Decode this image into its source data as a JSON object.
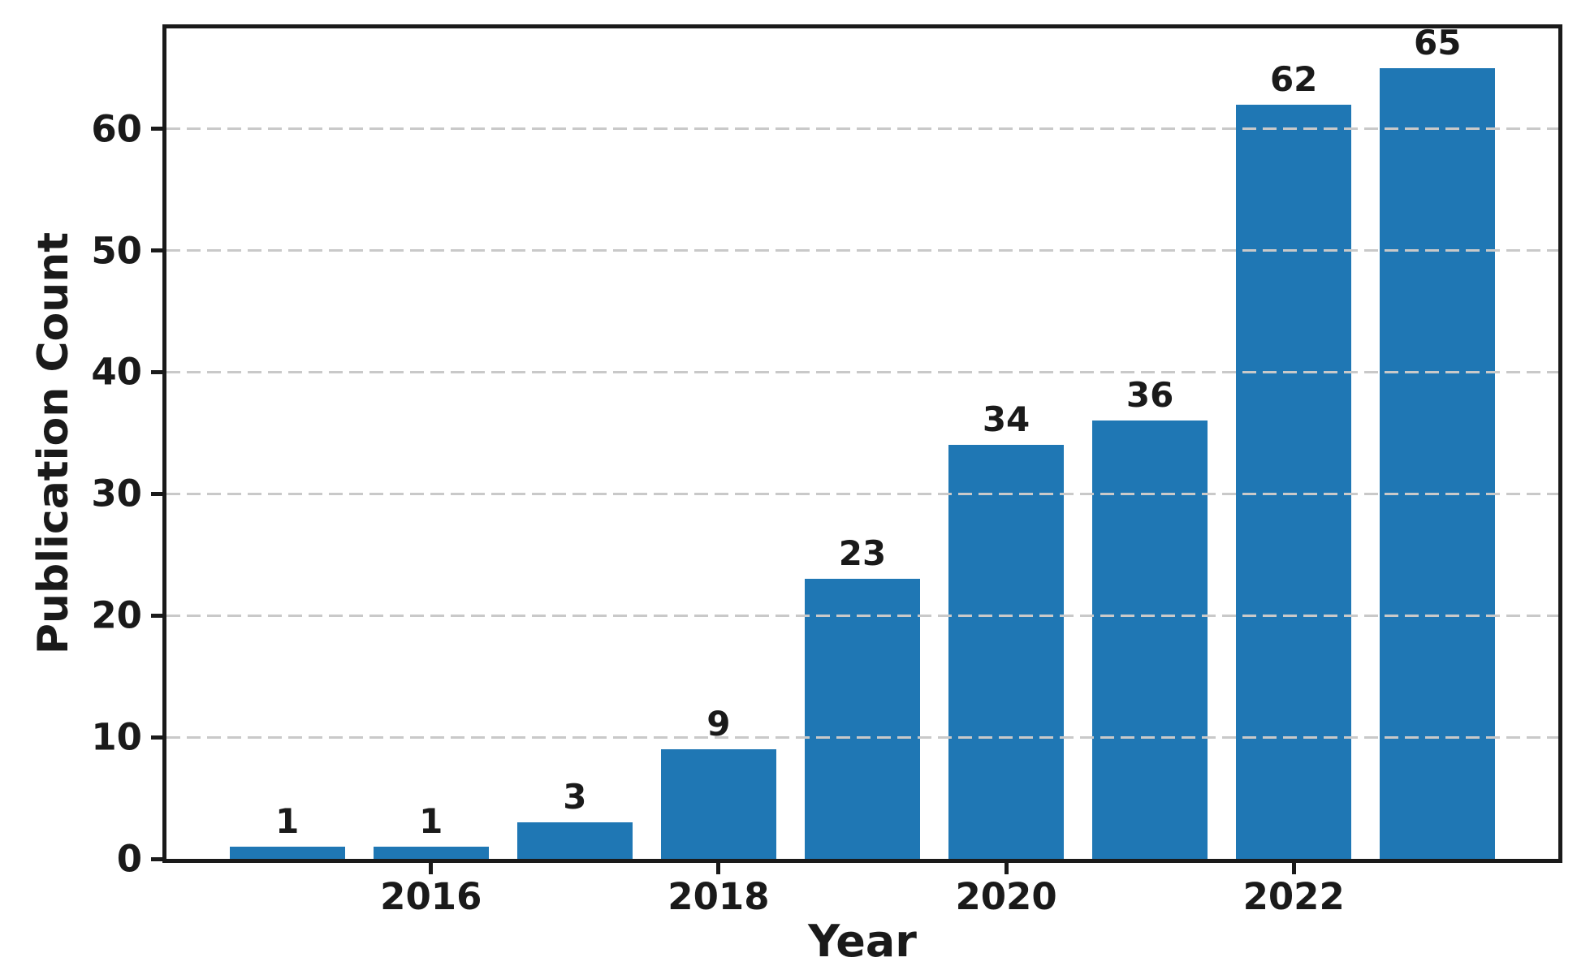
{
  "chart_data": {
    "type": "bar",
    "title": "",
    "xlabel": "Year",
    "ylabel": "Publication Count",
    "x": [
      2015,
      2016,
      2017,
      2018,
      2019,
      2020,
      2021,
      2022,
      2023
    ],
    "values": [
      1,
      1,
      3,
      9,
      23,
      34,
      36,
      62,
      65
    ],
    "bar_value_labels": [
      "1",
      "1",
      "3",
      "9",
      "23",
      "34",
      "36",
      "62",
      "65"
    ],
    "xticks": [
      2016,
      2018,
      2020,
      2022
    ],
    "xtick_labels": [
      "2016",
      "2018",
      "2020",
      "2022"
    ],
    "yticks": [
      0,
      10,
      20,
      30,
      40,
      50,
      60
    ],
    "ytick_labels": [
      "0",
      "10",
      "20",
      "30",
      "40",
      "50",
      "60"
    ],
    "ylim": [
      0,
      68.25
    ],
    "xlim": [
      2014.16,
      2023.84
    ],
    "bar_width_units": 0.8,
    "bar_color": "#1f77b4",
    "grid": "horizontal dashed gridlines at each y tick, drawn above bars",
    "gridline_color": "#c9c9c9",
    "spine_color": "#1a1a1a",
    "text_color": "#1a1a1a",
    "background_color": "#ffffff",
    "legend": "none"
  }
}
